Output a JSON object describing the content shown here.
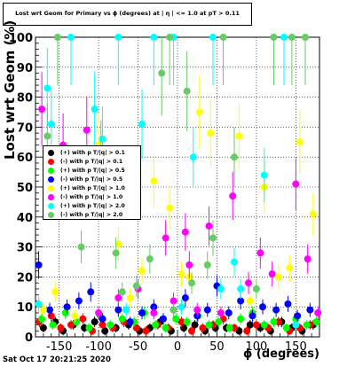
{
  "chart_data": {
    "type": "scatter",
    "title": "Lost wrt Geom for Primary vs ϕ (degrees) at | η | <= 1.0 at pT > 0.11",
    "xlabel": "ϕ (degrees)",
    "ylabel": "Lost wrt Geom (%)",
    "xlim": [
      -180,
      180
    ],
    "ylim": [
      0,
      100
    ],
    "x_ticks": [
      -150,
      -100,
      -50,
      0,
      50,
      100,
      150
    ],
    "y_ticks": [
      0,
      10,
      20,
      30,
      40,
      50,
      60,
      70,
      80,
      90,
      100
    ],
    "grid": true,
    "legend_position": "left",
    "series": [
      {
        "name": "(+) with p T/|q| > 0.1",
        "color": "#000000",
        "x": [
          -170,
          -155,
          -145,
          -132,
          -118,
          -105,
          -92,
          -78,
          -62,
          -48,
          -35,
          -22,
          -8,
          8,
          22,
          35,
          48,
          62,
          78,
          92,
          105,
          118,
          132,
          145,
          158,
          172
        ],
        "y": [
          3,
          5,
          2,
          4,
          3,
          5,
          2,
          3,
          4,
          2,
          3,
          5,
          2,
          3,
          4,
          2,
          3,
          3,
          2,
          4,
          3,
          2,
          5,
          3,
          2,
          4
        ]
      },
      {
        "name": "(-) with p T/|q| > 0.1",
        "color": "#ff0000",
        "x": [
          -175,
          -160,
          -148,
          -135,
          -120,
          -108,
          -95,
          -82,
          -68,
          -52,
          -40,
          -25,
          -12,
          5,
          18,
          32,
          45,
          58,
          72,
          88,
          100,
          115,
          128,
          142,
          155,
          168
        ],
        "y": [
          5,
          7,
          3,
          4,
          6,
          2,
          4,
          3,
          5,
          3,
          2,
          4,
          3,
          5,
          2,
          3,
          4,
          6,
          3,
          2,
          4,
          3,
          5,
          2,
          3,
          4
        ]
      },
      {
        "name": "(+) with p T/|q| > 0.5",
        "color": "#00ff00",
        "x": [
          -172,
          -158,
          -142,
          -128,
          -112,
          -98,
          -85,
          -70,
          -55,
          -42,
          -28,
          -15,
          -2,
          12,
          26,
          40,
          52,
          66,
          80,
          95,
          110,
          122,
          138,
          150,
          164,
          176
        ],
        "y": [
          6,
          4,
          8,
          5,
          3,
          7,
          4,
          6,
          5,
          8,
          4,
          3,
          6,
          5,
          7,
          4,
          5,
          3,
          6,
          8,
          4,
          5,
          3,
          6,
          4,
          5
        ]
      },
      {
        "name": "(-) with p T/|q| > 0.5",
        "color": "#0000ff",
        "x": [
          -176,
          -162,
          -140,
          -125,
          -110,
          -95,
          -75,
          -60,
          -45,
          -30,
          -18,
          -5,
          10,
          25,
          38,
          50,
          65,
          80,
          95,
          108,
          125,
          140,
          152,
          168
        ],
        "y": [
          24,
          9,
          10,
          12,
          15,
          6,
          9,
          5,
          8,
          10,
          6,
          9,
          13,
          7,
          9,
          17,
          8,
          12,
          7,
          10,
          9,
          11,
          7,
          9
        ]
      },
      {
        "name": "(+) with p T/|q| > 1.0",
        "color": "#ffff00",
        "x": [
          -170,
          -155,
          -130,
          -100,
          -75,
          -60,
          -45,
          -30,
          -10,
          5,
          15,
          28,
          42,
          55,
          78,
          92,
          110,
          128,
          142,
          155,
          172
        ],
        "y": [
          9,
          15,
          7,
          64,
          31,
          13,
          22,
          52,
          43,
          21,
          20,
          75,
          68,
          8,
          67,
          12,
          50,
          20,
          23,
          65,
          41
        ]
      },
      {
        "name": "(-) with p T/|q| > 1.0",
        "color": "#ff00ff",
        "x": [
          -172,
          -145,
          -115,
          -100,
          -75,
          -50,
          -30,
          -15,
          -5,
          10,
          15,
          25,
          40,
          55,
          70,
          90,
          105,
          120,
          150,
          165,
          178
        ],
        "y": [
          76,
          64,
          69,
          8,
          13,
          16,
          8,
          33,
          12,
          35,
          24,
          9,
          37,
          8,
          47,
          18,
          28,
          21,
          51,
          26,
          8
        ]
      },
      {
        "name": "(+) with p T/|q| > 2.0",
        "color": "#00ffff",
        "x": [
          -176,
          -165,
          -160,
          -135,
          -105,
          -95,
          -75,
          -65,
          -45,
          -30,
          -5,
          5,
          20,
          45,
          55,
          72,
          80,
          110,
          135,
          150
        ],
        "y": [
          11,
          83,
          71,
          100,
          76,
          66,
          100,
          9,
          71,
          100,
          100,
          10,
          60,
          100,
          16,
          25,
          16,
          54,
          100,
          4
        ]
      },
      {
        "name": "(-) with p T/|q| > 2.0",
        "color": "#66cc66",
        "x": [
          -165,
          -152,
          -122,
          -97,
          -78,
          -70,
          -52,
          -35,
          -20,
          -10,
          -5,
          12,
          18,
          38,
          45,
          58,
          72,
          100,
          122,
          145,
          162
        ],
        "y": [
          67,
          100,
          30,
          62,
          28,
          15,
          17,
          26,
          88,
          100,
          9,
          82,
          18,
          24,
          33,
          100,
          60,
          16,
          100,
          100,
          100
        ]
      }
    ]
  },
  "page": {
    "timestamp": "Sat Oct 17 20:21:25 2020"
  }
}
